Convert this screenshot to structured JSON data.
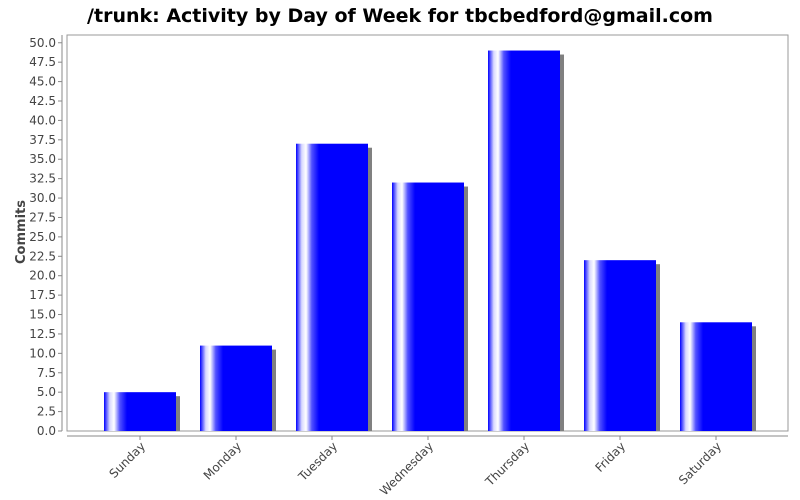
{
  "chart_data": {
    "type": "bar",
    "title": "/trunk: Activity by Day of Week for tbcbedford@gmail.com",
    "xlabel": "",
    "ylabel": "Commits",
    "categories": [
      "Sunday",
      "Monday",
      "Tuesday",
      "Wednesday",
      "Thursday",
      "Friday",
      "Saturday"
    ],
    "values": [
      5,
      11,
      37,
      32,
      49,
      22,
      14
    ],
    "ylim": [
      0,
      51
    ],
    "ytick_step": 2.5,
    "ytick_labels": [
      "0.0",
      "2.5",
      "5.0",
      "7.5",
      "10.0",
      "12.5",
      "15.0",
      "17.5",
      "20.0",
      "22.5",
      "25.0",
      "27.5",
      "30.0",
      "32.5",
      "35.0",
      "37.5",
      "40.0",
      "42.5",
      "45.0",
      "47.5",
      "50.0"
    ],
    "grid": false,
    "legend": "none",
    "bar_color": "#0000ff",
    "shadow_color": "#808080"
  }
}
